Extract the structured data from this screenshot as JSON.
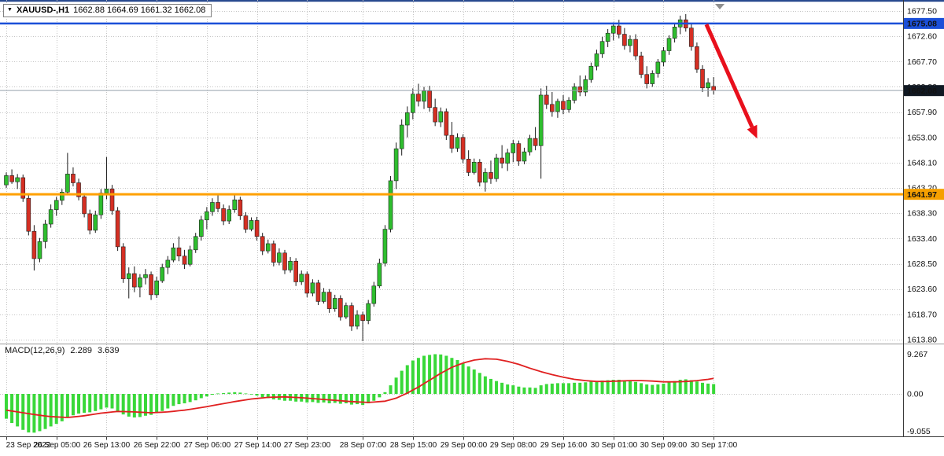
{
  "window": {
    "symbol_bar": {
      "dropdown_icon": "▼",
      "symbol": "XAUUSD-,H1",
      "ohlc": "1662.88 1664.69 1661.32 1662.08"
    }
  },
  "price_axis": {
    "labels": [
      "1677.50",
      "1672.60",
      "1667.70",
      "1662.80",
      "1657.90",
      "1653.00",
      "1648.10",
      "1643.20",
      "1638.30",
      "1633.40",
      "1628.50",
      "1623.60",
      "1618.70",
      "1613.80"
    ],
    "badges": [
      {
        "label": "1675.08",
        "price": 1675.08,
        "color": "#1b4fd8"
      },
      {
        "label": "1662.08",
        "price": 1662.08,
        "color": "#101822"
      },
      {
        "label": "1641.97",
        "price": 1641.97,
        "color": "#f59f00"
      }
    ]
  },
  "macd_panel": {
    "name": "MACD(12,26,9)",
    "value_main": "2.289",
    "value_signal": "3.639",
    "axis_labels": [
      "9.267",
      "0.00",
      "-9.055"
    ]
  },
  "colors": {
    "bull": "#2ebe2e",
    "bear": "#d52f23",
    "wick": "#1a1a1a",
    "candle_border": "#222222",
    "grid": "#c4c4c4",
    "blue_line": "#1b4fd8",
    "orange_line": "#ffa000",
    "current_line": "#97a2ad",
    "macd_hist": "#39d839",
    "macd_signal": "#e02020",
    "window_top_border": "#27498f"
  },
  "chart_data": {
    "type": "candlestick",
    "symbol": "XAUUSD",
    "timeframe": "H1",
    "y_axis": {
      "min": 1613.8,
      "max": 1677.5,
      "grid_step": 4.9
    },
    "x_labels": [
      "23 Sep 2022",
      "26 Sep 05:00",
      "26 Sep 13:00",
      "26 Sep 22:00",
      "27 Sep 06:00",
      "27 Sep 14:00",
      "27 Sep 23:00",
      "28 Sep 07:00",
      "28 Sep 15:00",
      "29 Sep 00:00",
      "29 Sep 08:00",
      "29 Sep 16:00",
      "30 Sep 01:00",
      "30 Sep 09:00",
      "30 Sep 17:00"
    ],
    "levels": {
      "resistance_line": 1675.08,
      "current_price": 1662.08,
      "support_line": 1641.97
    },
    "candles": [
      [
        1643.8,
        1646.2,
        1643.2,
        1645.6
      ],
      [
        1645.6,
        1646.8,
        1644.0,
        1644.4
      ],
      [
        1644.4,
        1645.9,
        1643.0,
        1645.2
      ],
      [
        1645.2,
        1645.8,
        1640.5,
        1641.2
      ],
      [
        1641.2,
        1641.8,
        1634.0,
        1634.8
      ],
      [
        1634.8,
        1636.0,
        1627.2,
        1629.5
      ],
      [
        1629.5,
        1633.5,
        1628.8,
        1632.8
      ],
      [
        1632.8,
        1637.0,
        1631.5,
        1636.2
      ],
      [
        1636.2,
        1640.0,
        1635.5,
        1639.0
      ],
      [
        1639.0,
        1641.5,
        1637.8,
        1640.8
      ],
      [
        1640.8,
        1643.0,
        1639.9,
        1642.4
      ],
      [
        1642.4,
        1650.0,
        1641.8,
        1645.9
      ],
      [
        1645.9,
        1647.2,
        1643.5,
        1644.2
      ],
      [
        1644.2,
        1645.0,
        1640.8,
        1641.5
      ],
      [
        1641.5,
        1642.2,
        1637.5,
        1638.2
      ],
      [
        1638.2,
        1639.0,
        1634.2,
        1635.0
      ],
      [
        1635.0,
        1638.8,
        1634.5,
        1638.0
      ],
      [
        1638.0,
        1643.0,
        1637.2,
        1642.2
      ],
      [
        1642.2,
        1649.2,
        1641.0,
        1643.0
      ],
      [
        1643.0,
        1643.8,
        1638.0,
        1638.8
      ],
      [
        1638.8,
        1639.5,
        1631.0,
        1631.8
      ],
      [
        1631.8,
        1632.5,
        1624.8,
        1625.6
      ],
      [
        1625.6,
        1627.8,
        1621.8,
        1626.6
      ],
      [
        1626.6,
        1628.0,
        1623.0,
        1624.0
      ],
      [
        1624.0,
        1626.5,
        1622.0,
        1625.8
      ],
      [
        1625.8,
        1627.5,
        1624.5,
        1626.4
      ],
      [
        1626.4,
        1627.0,
        1621.5,
        1622.5
      ],
      [
        1622.5,
        1626.0,
        1621.9,
        1625.2
      ],
      [
        1625.2,
        1628.5,
        1624.8,
        1627.8
      ],
      [
        1627.8,
        1630.0,
        1626.5,
        1629.2
      ],
      [
        1629.2,
        1632.5,
        1628.8,
        1631.6
      ],
      [
        1631.6,
        1633.8,
        1629.0,
        1630.0
      ],
      [
        1630.0,
        1631.2,
        1627.5,
        1628.4
      ],
      [
        1628.4,
        1632.0,
        1628.0,
        1631.2
      ],
      [
        1631.2,
        1634.5,
        1630.6,
        1633.8
      ],
      [
        1633.8,
        1637.8,
        1633.0,
        1637.0
      ],
      [
        1637.0,
        1639.5,
        1635.2,
        1638.6
      ],
      [
        1638.6,
        1641.2,
        1637.8,
        1640.4
      ],
      [
        1640.4,
        1642.0,
        1638.5,
        1639.2
      ],
      [
        1639.2,
        1640.0,
        1636.0,
        1636.8
      ],
      [
        1636.8,
        1639.8,
        1636.2,
        1639.0
      ],
      [
        1639.0,
        1641.8,
        1638.4,
        1640.9
      ],
      [
        1640.9,
        1641.5,
        1637.0,
        1637.8
      ],
      [
        1637.8,
        1638.5,
        1634.5,
        1635.2
      ],
      [
        1635.2,
        1637.5,
        1634.8,
        1636.9
      ],
      [
        1636.9,
        1637.6,
        1633.0,
        1633.8
      ],
      [
        1633.8,
        1634.5,
        1630.2,
        1631.0
      ],
      [
        1631.0,
        1633.2,
        1630.5,
        1632.4
      ],
      [
        1632.4,
        1633.0,
        1628.0,
        1628.8
      ],
      [
        1628.8,
        1631.5,
        1628.2,
        1630.6
      ],
      [
        1630.6,
        1631.2,
        1626.5,
        1627.3
      ],
      [
        1627.3,
        1629.8,
        1626.8,
        1629.0
      ],
      [
        1629.0,
        1629.6,
        1624.2,
        1625.0
      ],
      [
        1625.0,
        1627.2,
        1624.4,
        1626.5
      ],
      [
        1626.5,
        1627.0,
        1622.0,
        1622.8
      ],
      [
        1622.8,
        1625.5,
        1622.2,
        1624.8
      ],
      [
        1624.8,
        1625.4,
        1620.5,
        1621.2
      ],
      [
        1621.2,
        1623.8,
        1620.8,
        1623.0
      ],
      [
        1623.0,
        1623.6,
        1619.0,
        1619.8
      ],
      [
        1619.8,
        1622.5,
        1619.2,
        1621.8
      ],
      [
        1621.8,
        1622.4,
        1617.5,
        1618.2
      ],
      [
        1618.2,
        1621.0,
        1617.8,
        1620.4
      ],
      [
        1620.4,
        1621.0,
        1615.5,
        1616.4
      ],
      [
        1616.4,
        1619.5,
        1615.8,
        1618.6
      ],
      [
        1618.6,
        1619.2,
        1613.5,
        1617.5
      ],
      [
        1617.5,
        1621.5,
        1616.8,
        1620.8
      ],
      [
        1620.8,
        1625.0,
        1620.2,
        1624.2
      ],
      [
        1624.2,
        1629.5,
        1623.8,
        1628.6
      ],
      [
        1628.6,
        1636.0,
        1628.0,
        1635.2
      ],
      [
        1635.2,
        1645.5,
        1634.6,
        1644.6
      ],
      [
        1644.6,
        1652.0,
        1643.0,
        1650.8
      ],
      [
        1650.8,
        1656.5,
        1649.5,
        1655.4
      ],
      [
        1655.4,
        1659.0,
        1653.0,
        1657.8
      ],
      [
        1657.8,
        1662.5,
        1656.5,
        1661.4
      ],
      [
        1661.4,
        1663.4,
        1659.0,
        1660.0
      ],
      [
        1660.0,
        1662.8,
        1658.5,
        1662.0
      ],
      [
        1662.0,
        1663.0,
        1658.0,
        1658.8
      ],
      [
        1658.8,
        1660.5,
        1655.2,
        1656.0
      ],
      [
        1656.0,
        1658.8,
        1655.0,
        1658.0
      ],
      [
        1658.0,
        1658.6,
        1652.5,
        1653.4
      ],
      [
        1653.4,
        1656.0,
        1650.0,
        1650.9
      ],
      [
        1650.9,
        1653.8,
        1650.2,
        1653.0
      ],
      [
        1653.0,
        1653.6,
        1648.0,
        1648.8
      ],
      [
        1648.8,
        1650.5,
        1645.5,
        1646.2
      ],
      [
        1646.2,
        1648.9,
        1645.8,
        1648.2
      ],
      [
        1648.2,
        1648.8,
        1643.5,
        1644.3
      ],
      [
        1644.3,
        1647.0,
        1642.5,
        1646.2
      ],
      [
        1646.2,
        1648.5,
        1644.0,
        1645.0
      ],
      [
        1645.0,
        1649.8,
        1644.4,
        1649.0
      ],
      [
        1649.0,
        1651.5,
        1647.0,
        1648.0
      ],
      [
        1648.0,
        1650.8,
        1646.5,
        1650.0
      ],
      [
        1650.0,
        1652.5,
        1648.2,
        1651.8
      ],
      [
        1651.8,
        1652.4,
        1647.5,
        1648.4
      ],
      [
        1648.4,
        1651.0,
        1647.8,
        1650.2
      ],
      [
        1650.2,
        1653.5,
        1649.5,
        1652.8
      ],
      [
        1652.8,
        1655.0,
        1650.5,
        1651.4
      ],
      [
        1651.4,
        1662.5,
        1645.0,
        1661.2
      ],
      [
        1661.2,
        1663.0,
        1658.5,
        1659.4
      ],
      [
        1659.4,
        1661.8,
        1657.0,
        1658.0
      ],
      [
        1658.0,
        1660.5,
        1656.8,
        1660.0
      ],
      [
        1660.0,
        1661.2,
        1657.5,
        1658.4
      ],
      [
        1658.4,
        1660.8,
        1657.8,
        1660.2
      ],
      [
        1660.2,
        1663.5,
        1659.6,
        1662.8
      ],
      [
        1662.8,
        1665.0,
        1661.0,
        1661.8
      ],
      [
        1661.8,
        1665.0,
        1661.0,
        1664.2
      ],
      [
        1664.2,
        1667.5,
        1663.6,
        1666.8
      ],
      [
        1666.8,
        1670.0,
        1666.0,
        1669.2
      ],
      [
        1669.2,
        1672.5,
        1668.4,
        1671.6
      ],
      [
        1671.6,
        1674.0,
        1670.5,
        1673.2
      ],
      [
        1673.2,
        1675.3,
        1671.8,
        1674.6
      ],
      [
        1674.6,
        1675.8,
        1672.2,
        1673.0
      ],
      [
        1673.0,
        1674.2,
        1670.0,
        1670.8
      ],
      [
        1670.8,
        1672.8,
        1669.5,
        1672.0
      ],
      [
        1672.0,
        1673.0,
        1668.0,
        1668.8
      ],
      [
        1668.8,
        1669.6,
        1664.5,
        1665.2
      ],
      [
        1665.2,
        1666.8,
        1662.5,
        1663.4
      ],
      [
        1663.4,
        1666.0,
        1662.8,
        1665.4
      ],
      [
        1665.4,
        1668.2,
        1664.6,
        1667.6
      ],
      [
        1667.6,
        1670.5,
        1666.8,
        1669.8
      ],
      [
        1669.8,
        1672.8,
        1669.0,
        1672.2
      ],
      [
        1672.2,
        1675.0,
        1671.4,
        1674.4
      ],
      [
        1674.4,
        1676.6,
        1673.0,
        1675.8
      ],
      [
        1675.8,
        1676.9,
        1673.5,
        1674.2
      ],
      [
        1674.2,
        1675.0,
        1669.8,
        1670.6
      ],
      [
        1670.6,
        1671.4,
        1665.5,
        1666.2
      ],
      [
        1666.2,
        1667.0,
        1661.8,
        1662.6
      ],
      [
        1662.6,
        1664.5,
        1660.9,
        1663.6
      ],
      [
        1662.88,
        1664.69,
        1661.32,
        1662.08
      ]
    ],
    "macd": {
      "type": "bar+line",
      "params": "12,26,9",
      "ylim": [
        -9.055,
        9.267
      ],
      "histogram": [
        -5.8,
        -6.8,
        -7.6,
        -8.4,
        -9.0,
        -9.05,
        -8.7,
        -8.2,
        -7.6,
        -7.0,
        -6.4,
        -5.6,
        -5.0,
        -4.6,
        -4.4,
        -4.3,
        -4.0,
        -3.6,
        -3.2,
        -3.4,
        -4.0,
        -4.8,
        -5.3,
        -5.5,
        -5.4,
        -5.1,
        -4.9,
        -4.5,
        -4.0,
        -3.4,
        -2.8,
        -2.4,
        -2.2,
        -1.9,
        -1.5,
        -1.0,
        -0.6,
        -0.2,
        0.1,
        0.2,
        0.3,
        0.4,
        0.3,
        0.1,
        -0.1,
        -0.4,
        -0.8,
        -1.0,
        -1.3,
        -1.4,
        -1.6,
        -1.6,
        -1.8,
        -1.8,
        -2.0,
        -1.9,
        -2.1,
        -2.0,
        -2.2,
        -2.1,
        -2.3,
        -2.2,
        -2.5,
        -2.4,
        -2.6,
        -2.2,
        -1.6,
        -0.8,
        0.4,
        2.0,
        3.8,
        5.4,
        6.7,
        7.8,
        8.4,
        8.9,
        9.1,
        9.267,
        9.2,
        8.9,
        8.4,
        7.9,
        7.2,
        6.4,
        5.7,
        4.9,
        4.1,
        3.5,
        3.0,
        2.6,
        2.2,
        2.0,
        1.7,
        1.5,
        1.5,
        1.4,
        2.0,
        2.3,
        2.4,
        2.5,
        2.5,
        2.5,
        2.6,
        2.6,
        2.7,
        2.9,
        3.0,
        3.1,
        3.2,
        3.3,
        3.3,
        3.1,
        3.0,
        2.8,
        2.5,
        2.2,
        2.1,
        2.2,
        2.4,
        2.7,
        3.0,
        3.3,
        3.4,
        3.2,
        2.9,
        2.6,
        2.4,
        2.289
      ],
      "signal": [
        -3.8,
        -4.0,
        -4.2,
        -4.4,
        -4.6,
        -4.8,
        -5.0,
        -5.15,
        -5.3,
        -5.37,
        -5.44,
        -5.5,
        -5.37,
        -5.24,
        -5.1,
        -4.9,
        -4.7,
        -4.5,
        -4.37,
        -4.23,
        -4.1,
        -4.13,
        -4.17,
        -4.2,
        -4.27,
        -4.33,
        -4.4,
        -4.33,
        -4.27,
        -4.2,
        -4.07,
        -3.93,
        -3.8,
        -3.6,
        -3.4,
        -3.2,
        -2.97,
        -2.73,
        -2.5,
        -2.27,
        -2.03,
        -1.8,
        -1.6,
        -1.4,
        -1.2,
        -1.07,
        -0.93,
        -0.8,
        -0.77,
        -0.73,
        -0.7,
        -0.77,
        -0.83,
        -0.9,
        -1.0,
        -1.1,
        -1.2,
        -1.3,
        -1.4,
        -1.5,
        -1.6,
        -1.7,
        -1.8,
        -1.87,
        -1.93,
        -2.0,
        -1.9,
        -1.8,
        -1.7,
        -1.35,
        -1.0,
        -0.4,
        0.2,
        0.9,
        1.6,
        2.4,
        3.2,
        4.0,
        4.8,
        5.5,
        6.2,
        6.7,
        7.2,
        7.55,
        7.9,
        8.05,
        8.2,
        8.15,
        8.1,
        7.85,
        7.6,
        7.25,
        6.9,
        6.45,
        6.0,
        5.6,
        5.2,
        4.85,
        4.5,
        4.2,
        3.9,
        3.65,
        3.4,
        3.25,
        3.1,
        3.0,
        2.9,
        2.9,
        2.9,
        2.95,
        3.0,
        3.05,
        3.1,
        3.1,
        3.1,
        3.05,
        3.0,
        2.9,
        2.8,
        2.8,
        2.8,
        2.85,
        2.9,
        3.0,
        3.1,
        3.25,
        3.4,
        3.639
      ]
    },
    "arrow_annotation": {
      "from": {
        "bar": 125.7,
        "price": 1674.9
      },
      "to": {
        "bar": 133.9,
        "price": 1655.0
      },
      "color": "#e8101c"
    }
  }
}
